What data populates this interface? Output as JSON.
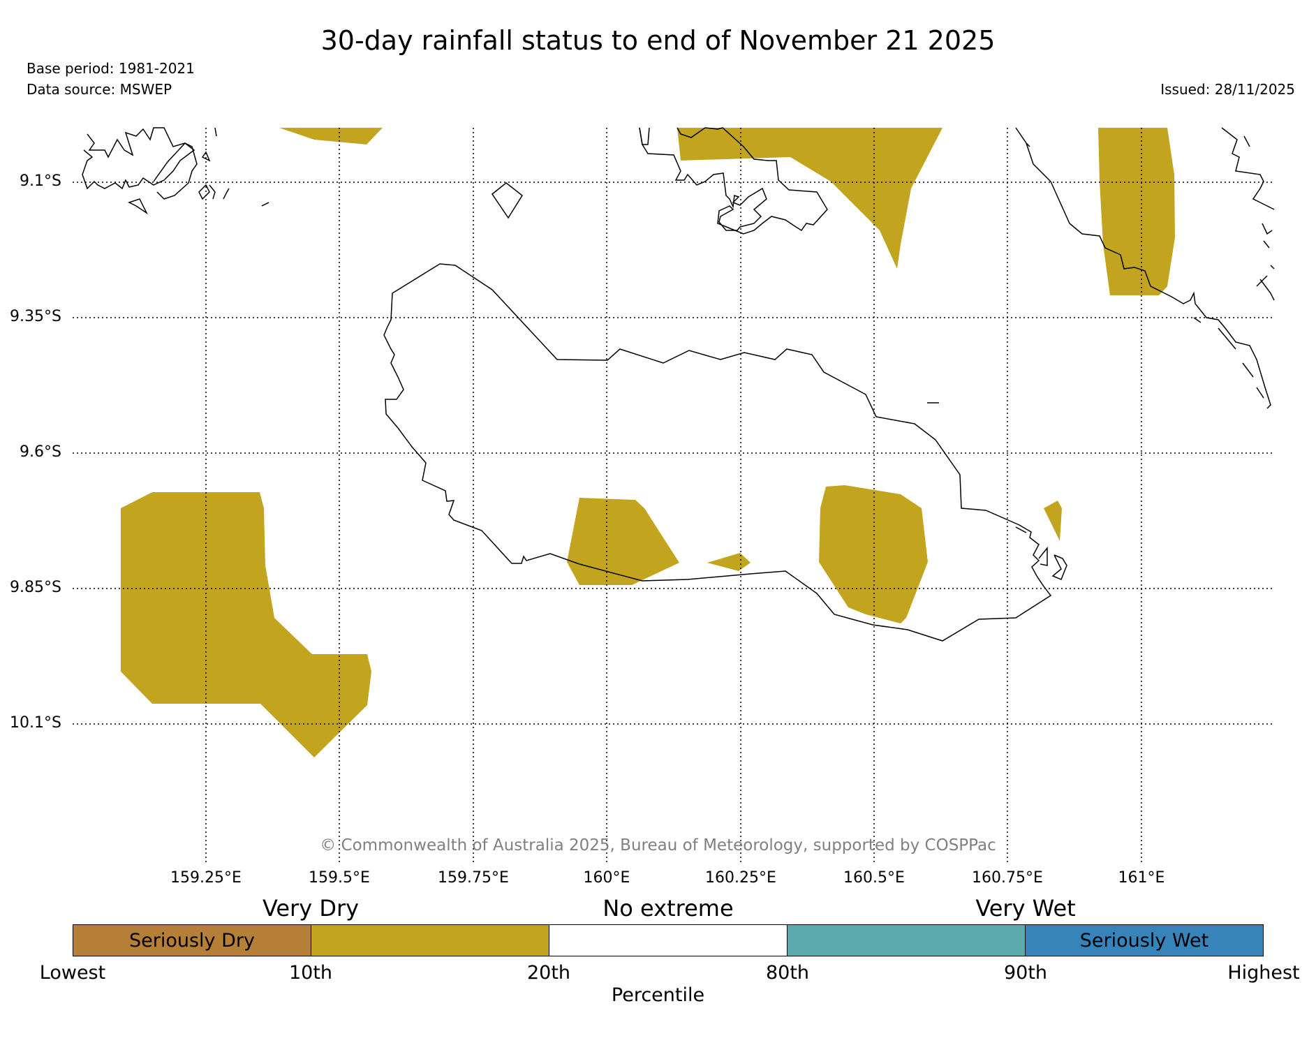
{
  "title": "30-day rainfall status to end of November 21 2025",
  "base_period": "Base period: 1981-2021",
  "data_source": "Data source: MSWEP",
  "issued": "Issued: 28/11/2025",
  "copyright": "© Commonwealth of Australia 2025, Bureau of Meteorology, supported by COSPPac",
  "lat_labels": [
    "9.1°S",
    "9.35°S",
    "9.6°S",
    "9.85°S",
    "10.1°S"
  ],
  "lon_labels": [
    "159.25°E",
    "159.5°E",
    "159.75°E",
    "160°E",
    "160.25°E",
    "160.5°E",
    "160.75°E",
    "161°E"
  ],
  "legend": {
    "category_labels": [
      "Very Dry",
      "No extreme",
      "Very Wet"
    ],
    "segments": [
      {
        "label": "Seriously Dry",
        "color": "#b67f38"
      },
      {
        "label": "",
        "color": "#c2a41e"
      },
      {
        "label": "",
        "color": "#ffffff"
      },
      {
        "label": "",
        "color": "#5ca9ae"
      },
      {
        "label": "Seriously Wet",
        "color": "#3784bb"
      }
    ],
    "ticks": [
      "Lowest",
      "10th",
      "20th",
      "80th",
      "90th",
      "Highest"
    ],
    "axis_title": "Percentile"
  },
  "colors": {
    "very_dry": "#c2a41e",
    "coast": "#000000",
    "grid": "#000000"
  }
}
